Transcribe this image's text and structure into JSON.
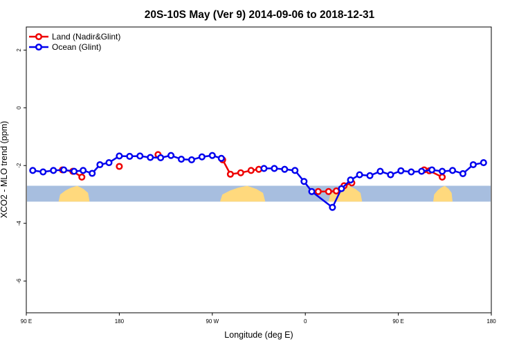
{
  "chart_data": {
    "type": "line",
    "title": "20S-10S May (Ver 9)   2014-09-06 to 2018-12-31",
    "xlabel": "Longitude (deg E)",
    "ylabel": "XCO2 - MLO trend (ppm)",
    "xlim": [
      90,
      450
    ],
    "ylim": [
      -7.1,
      2.8
    ],
    "x_ticks": [
      {
        "value": 90,
        "label": "90 E"
      },
      {
        "value": 162,
        "label": "180"
      },
      {
        "value": 234,
        "label": "90 W"
      },
      {
        "value": 306,
        "label": "0"
      },
      {
        "value": 378,
        "label": "90 E"
      },
      {
        "value": 450,
        "label": "180"
      }
    ],
    "y_ticks": [
      {
        "value": 2,
        "label": "2"
      },
      {
        "value": 0,
        "label": "0"
      },
      {
        "value": -2,
        "label": "-2"
      },
      {
        "value": -4,
        "label": "-4"
      },
      {
        "value": -6,
        "label": "-6"
      }
    ],
    "grid": false,
    "legend_position": "top-left",
    "background_band": {
      "y_range": [
        -3.25,
        -2.7
      ],
      "ocean_color": "#a7bedf",
      "land_color": "#ffd97d",
      "land_segments": [
        [
          115,
          139
        ],
        [
          240,
          275
        ],
        [
          324,
          350
        ],
        [
          405,
          420
        ]
      ]
    },
    "series": [
      {
        "name": "Land (Nadir&Glint)",
        "color": "#ee0000",
        "segments": [
          [
            [
              118,
              -2.15
            ],
            [
              126,
              -2.2
            ],
            [
              133,
              -2.4
            ]
          ],
          [
            [
              162,
              -2.03
            ]
          ],
          [
            [
              192,
              -1.62
            ]
          ],
          [
            [
              242,
              -1.8
            ],
            [
              248,
              -2.3
            ],
            [
              256,
              -2.25
            ],
            [
              264,
              -2.17
            ],
            [
              270,
              -2.13
            ]
          ],
          [
            [
              316,
              -2.9
            ],
            [
              324,
              -2.9
            ],
            [
              330,
              -2.88
            ],
            [
              336,
              -2.7
            ],
            [
              342,
              -2.6
            ]
          ],
          [
            [
              398,
              -2.15
            ],
            [
              402,
              -2.18
            ],
            [
              412,
              -2.4
            ]
          ]
        ]
      },
      {
        "name": "Ocean (Glint)",
        "color": "#0000ee",
        "segments": [
          [
            [
              95,
              -2.17
            ],
            [
              103,
              -2.22
            ],
            [
              111,
              -2.17
            ],
            [
              119,
              -2.15
            ],
            [
              127,
              -2.2
            ],
            [
              134,
              -2.17
            ],
            [
              141,
              -2.27
            ],
            [
              147,
              -1.97
            ],
            [
              154,
              -1.9
            ],
            [
              162,
              -1.67
            ],
            [
              170,
              -1.68
            ],
            [
              178,
              -1.67
            ],
            [
              186,
              -1.72
            ],
            [
              194,
              -1.73
            ],
            [
              202,
              -1.65
            ],
            [
              210,
              -1.78
            ],
            [
              218,
              -1.8
            ],
            [
              226,
              -1.7
            ],
            [
              234,
              -1.65
            ],
            [
              241,
              -1.75
            ]
          ],
          [
            [
              274,
              -2.1
            ],
            [
              282,
              -2.1
            ],
            [
              290,
              -2.13
            ],
            [
              298,
              -2.17
            ],
            [
              305,
              -2.55
            ],
            [
              311,
              -2.9
            ],
            [
              327,
              -3.45
            ],
            [
              334,
              -2.8
            ],
            [
              341,
              -2.5
            ],
            [
              348,
              -2.32
            ],
            [
              356,
              -2.35
            ],
            [
              364,
              -2.2
            ],
            [
              372,
              -2.32
            ],
            [
              380,
              -2.18
            ],
            [
              388,
              -2.22
            ],
            [
              396,
              -2.2
            ],
            [
              404,
              -2.15
            ],
            [
              412,
              -2.2
            ],
            [
              420,
              -2.17
            ],
            [
              428,
              -2.28
            ],
            [
              436,
              -1.97
            ],
            [
              444,
              -1.9
            ]
          ]
        ]
      }
    ]
  }
}
